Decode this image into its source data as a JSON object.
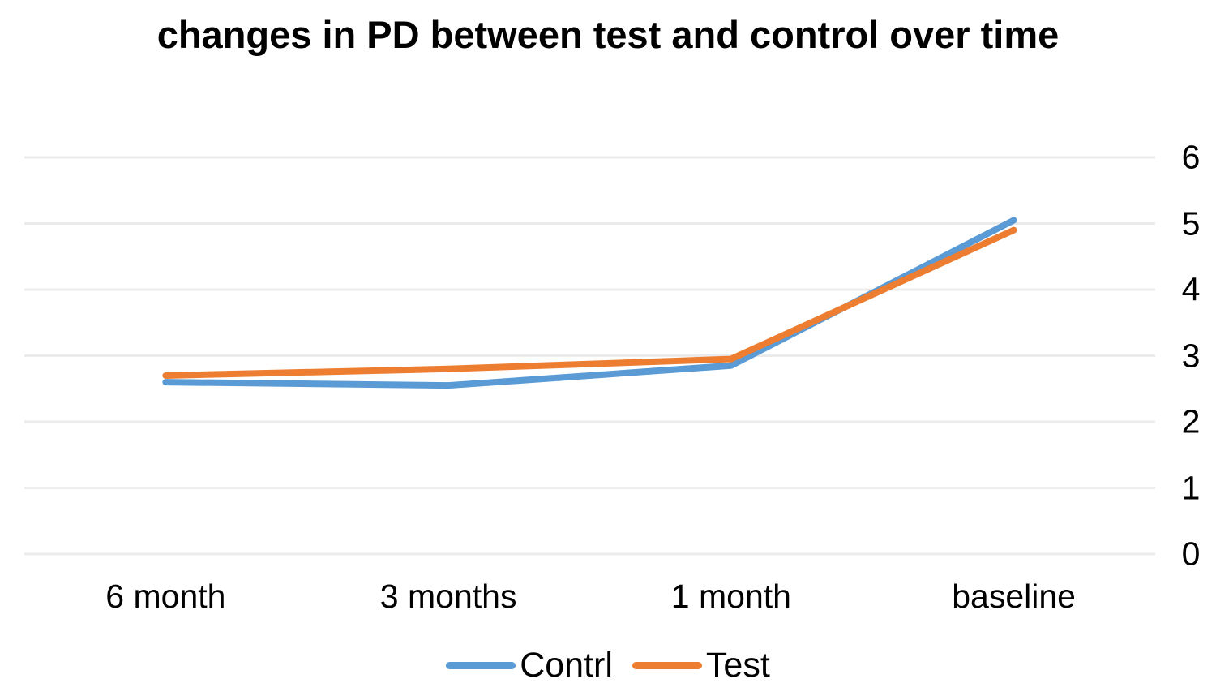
{
  "title": "changes in PD between test and control over time",
  "chart_data": {
    "type": "line",
    "categories": [
      "6 month",
      "3 months",
      "1 month",
      "baseline"
    ],
    "series": [
      {
        "name": "Contrl",
        "color": "#5B9BD5",
        "values": [
          2.6,
          2.55,
          2.85,
          5.05
        ]
      },
      {
        "name": "Test",
        "color": "#ED7D31",
        "values": [
          2.7,
          2.8,
          2.95,
          4.9
        ]
      }
    ],
    "ylim": [
      0,
      6
    ],
    "yticks": [
      0,
      1,
      2,
      3,
      4,
      5,
      6
    ],
    "y_axis_side": "right",
    "grid": true,
    "gridline_color": "#EBEBEB",
    "legend_position": "bottom"
  }
}
